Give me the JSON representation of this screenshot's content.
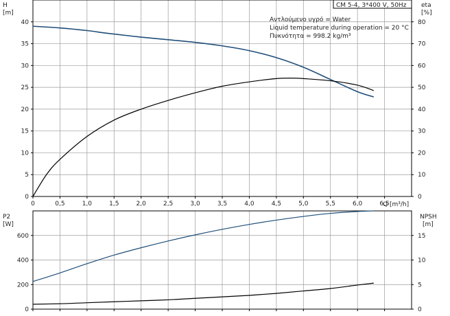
{
  "chart_data": [
    {
      "type": "line",
      "title": "CM 5-4, 3*400 V, 50Hz",
      "annotations": [
        "Αντλούμενο υγρό = Water",
        "Liquid temperature during operation = 20 °C",
        "Πυκνότητα = 998.2 kg/m³"
      ],
      "xlabel": "Q [m³/h]",
      "ylabel": [
        "H",
        "[m]"
      ],
      "y2label": [
        "eta",
        "[%]"
      ],
      "xlim": [
        0,
        7
      ],
      "ylim": [
        0,
        45
      ],
      "y2lim": [
        0,
        90
      ],
      "x_ticks": [
        "0",
        "0,5",
        "1,0",
        "1,5",
        "2,0",
        "2,5",
        "3,0",
        "3,5",
        "4,0",
        "4,5",
        "5,0",
        "5,5",
        "6,0",
        "6,5"
      ],
      "y_ticks": [
        "0",
        "5",
        "10",
        "15",
        "20",
        "25",
        "30",
        "35",
        "40"
      ],
      "y2_ticks": [
        "0",
        "10",
        "20",
        "30",
        "40",
        "50",
        "60",
        "70",
        "80"
      ],
      "grid": true,
      "series": [
        {
          "axis": "left",
          "color": "#1f4e79",
          "x": [
            0,
            0.5,
            1.0,
            1.3,
            1.5,
            2.0,
            2.5,
            3.0,
            3.5,
            4.0,
            4.5,
            5.0,
            5.5,
            6.0,
            6.3
          ],
          "values": [
            39.0,
            38.6,
            38.0,
            37.5,
            37.2,
            36.5,
            35.9,
            35.3,
            34.5,
            33.4,
            31.8,
            29.6,
            26.8,
            24.0,
            22.8
          ]
        },
        {
          "axis": "right",
          "color": "#000000",
          "x": [
            0,
            0.25,
            0.5,
            1.0,
            1.5,
            2.0,
            2.5,
            3.0,
            3.5,
            4.0,
            4.5,
            4.8,
            5.0,
            5.5,
            6.0,
            6.3
          ],
          "values": [
            0,
            10,
            17,
            27.5,
            35,
            40,
            44,
            47.5,
            50.5,
            52.5,
            54,
            54.2,
            54,
            53,
            51,
            48.5
          ]
        }
      ]
    },
    {
      "type": "line",
      "xlim": [
        0,
        7
      ],
      "ylabel": [
        "P2",
        "[W]"
      ],
      "y2label": [
        "NPSH",
        "[m]"
      ],
      "ylim": [
        0,
        800
      ],
      "y2lim": [
        0,
        20
      ],
      "y_ticks": [
        "0",
        "200",
        "400",
        "600"
      ],
      "y2_ticks": [
        "0",
        "5",
        "10",
        "15"
      ],
      "grid": true,
      "series": [
        {
          "axis": "left",
          "color": "#1f4e79",
          "x": [
            0,
            0.5,
            1.0,
            1.5,
            2.0,
            2.5,
            3.0,
            3.5,
            4.0,
            4.5,
            5.0,
            5.5,
            6.0,
            6.3
          ],
          "values": [
            225,
            295,
            370,
            440,
            500,
            555,
            605,
            650,
            690,
            725,
            755,
            780,
            795,
            800
          ]
        },
        {
          "axis": "right",
          "color": "#000000",
          "x": [
            0,
            0.5,
            1.0,
            1.5,
            2.0,
            2.5,
            3.0,
            3.5,
            4.0,
            4.5,
            5.0,
            5.5,
            6.0,
            6.3
          ],
          "values": [
            1.0,
            1.1,
            1.3,
            1.5,
            1.7,
            1.9,
            2.2,
            2.5,
            2.8,
            3.2,
            3.7,
            4.2,
            4.9,
            5.3
          ]
        }
      ]
    }
  ]
}
